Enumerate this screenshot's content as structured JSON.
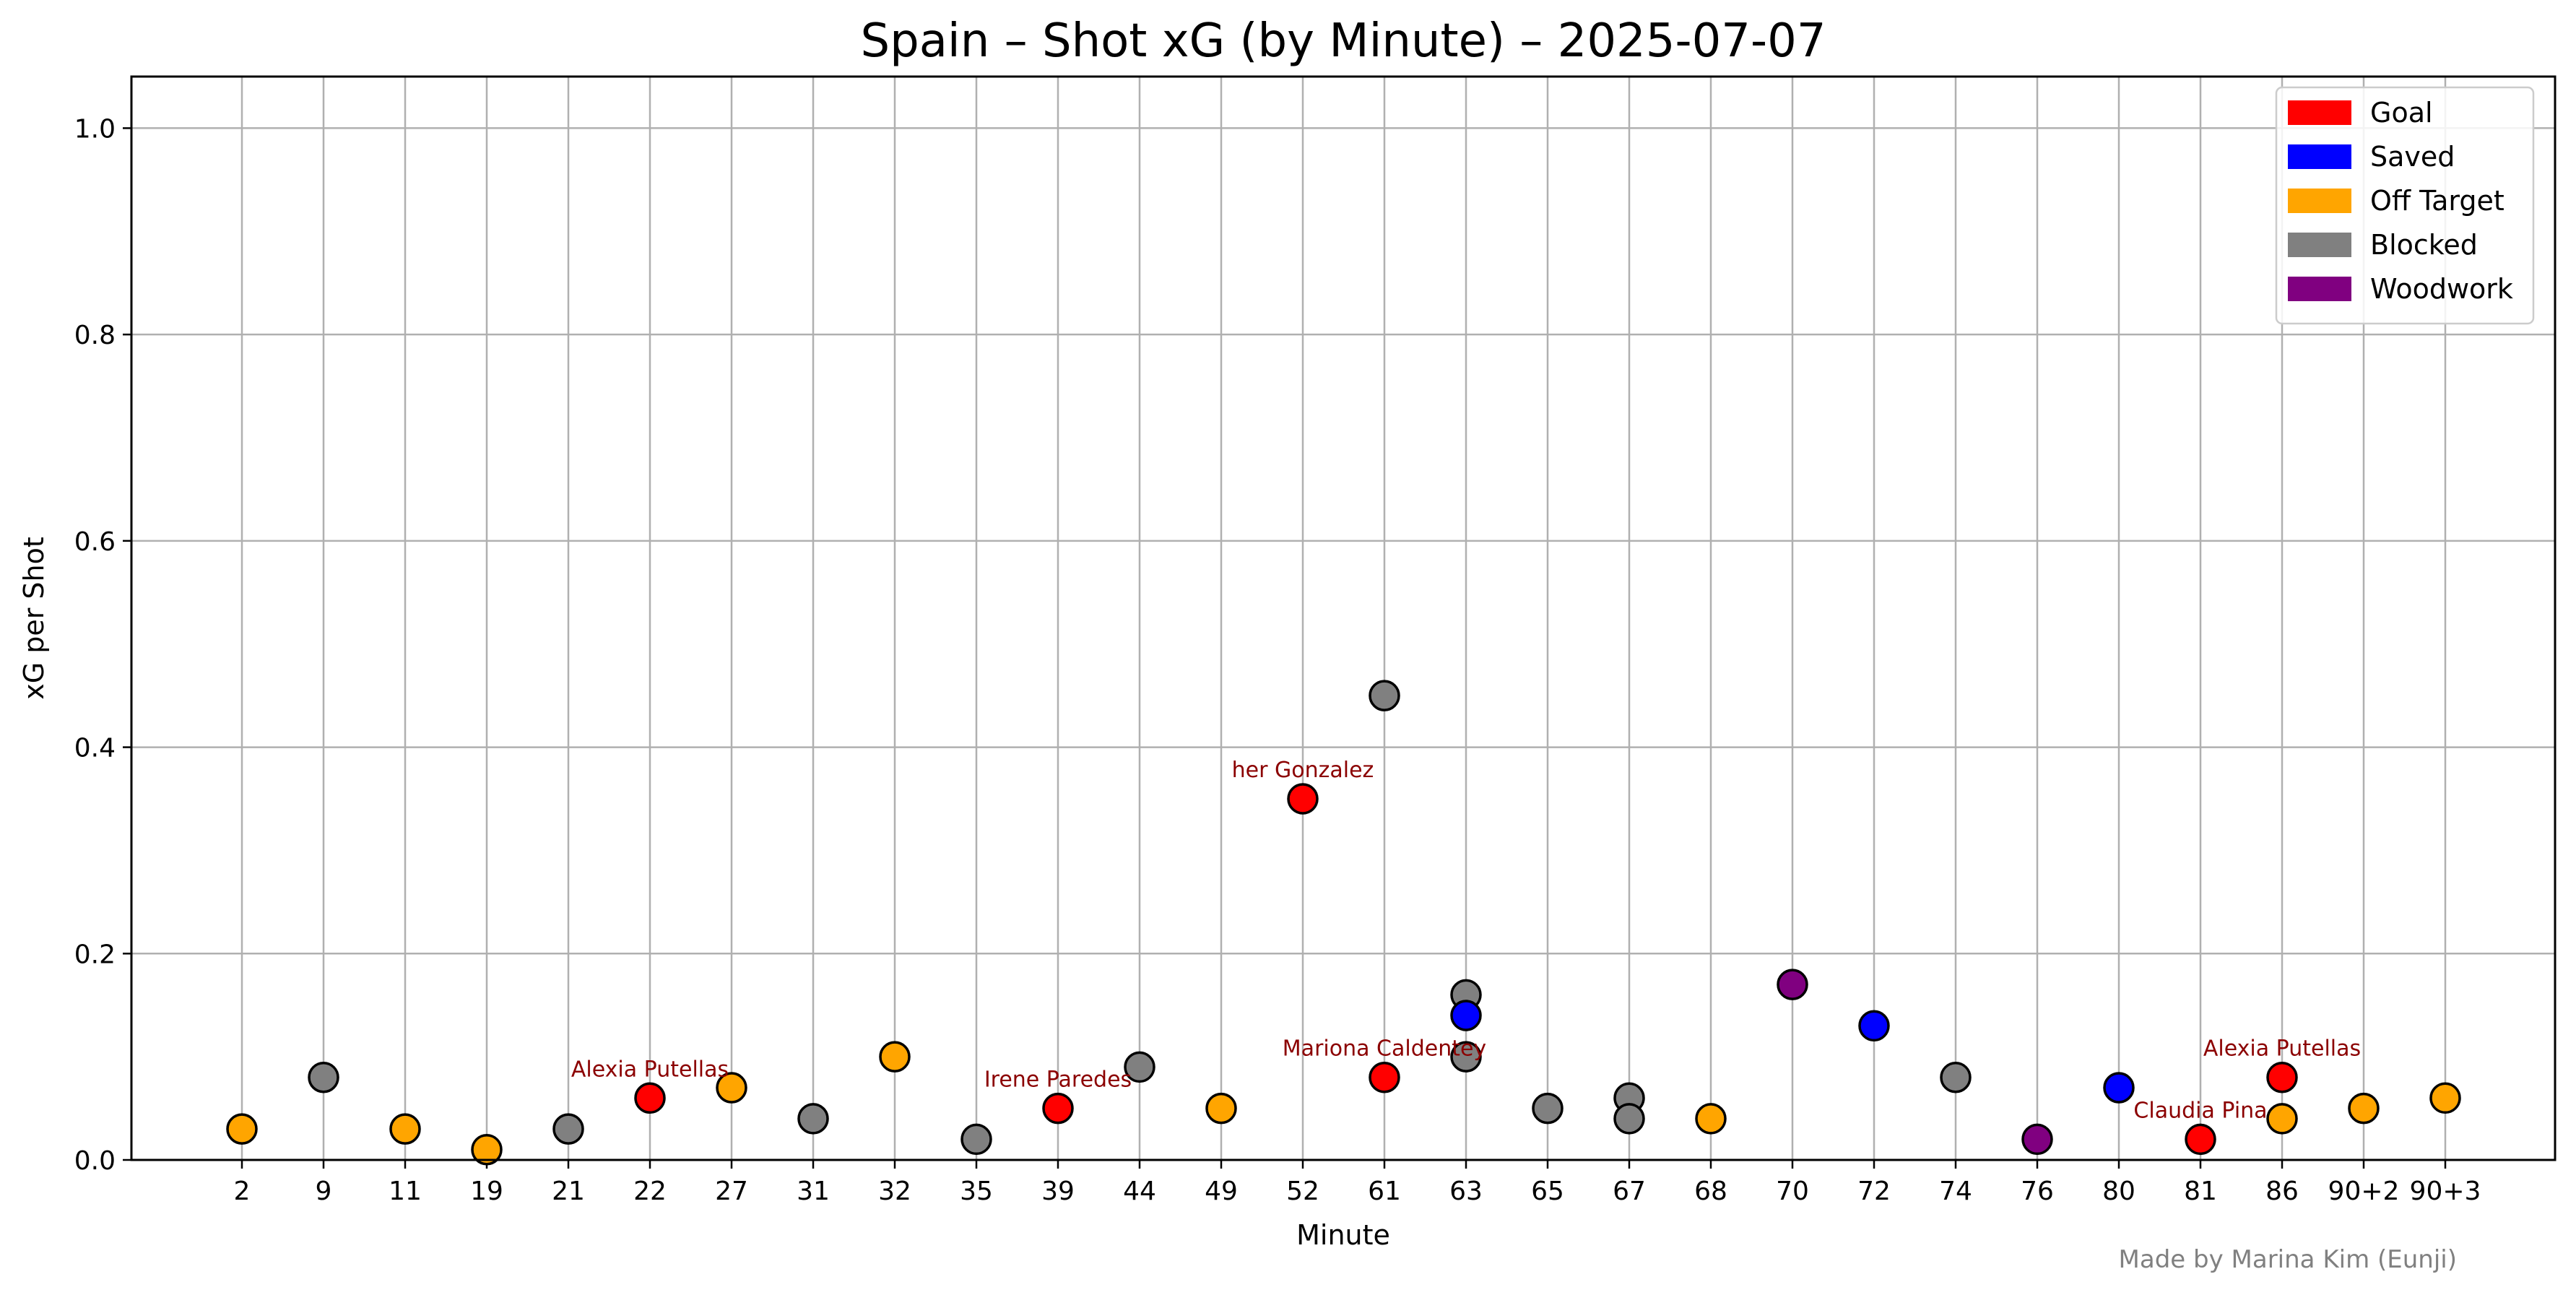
{
  "chart_data": {
    "type": "scatter",
    "title": "Spain – Shot xG (by Minute) – 2025-07-07",
    "xlabel": "Minute",
    "ylabel": "xG per Shot",
    "ylim": [
      0,
      1.05
    ],
    "yticks": [
      "0.0",
      "0.2",
      "0.4",
      "0.6",
      "0.8",
      "1.0"
    ],
    "categories": [
      "2",
      "9",
      "11",
      "19",
      "21",
      "22",
      "27",
      "31",
      "32",
      "35",
      "39",
      "44",
      "49",
      "52",
      "61",
      "63",
      "65",
      "67",
      "68",
      "70",
      "72",
      "74",
      "76",
      "80",
      "81",
      "86",
      "90+2",
      "90+3"
    ],
    "grid": true,
    "legend_position": "top-right",
    "legend": [
      {
        "label": "Goal",
        "color": "#ff0000"
      },
      {
        "label": "Saved",
        "color": "#0000ff"
      },
      {
        "label": "Off Target",
        "color": "#ffa500"
      },
      {
        "label": "Blocked",
        "color": "#808080"
      },
      {
        "label": "Woodwork",
        "color": "#800080"
      }
    ],
    "points": [
      {
        "x": "2",
        "y": 0.03,
        "outcome": "Off Target"
      },
      {
        "x": "9",
        "y": 0.08,
        "outcome": "Blocked"
      },
      {
        "x": "11",
        "y": 0.03,
        "outcome": "Off Target"
      },
      {
        "x": "19",
        "y": 0.01,
        "outcome": "Off Target"
      },
      {
        "x": "21",
        "y": 0.03,
        "outcome": "Blocked"
      },
      {
        "x": "22",
        "y": 0.06,
        "outcome": "Goal",
        "label": "Alexia Putellas"
      },
      {
        "x": "27",
        "y": 0.07,
        "outcome": "Off Target"
      },
      {
        "x": "31",
        "y": 0.04,
        "outcome": "Blocked"
      },
      {
        "x": "32",
        "y": 0.1,
        "outcome": "Off Target"
      },
      {
        "x": "35",
        "y": 0.02,
        "outcome": "Blocked"
      },
      {
        "x": "39",
        "y": 0.05,
        "outcome": "Goal",
        "label": "Irene Paredes"
      },
      {
        "x": "44",
        "y": 0.09,
        "outcome": "Blocked"
      },
      {
        "x": "49",
        "y": 0.05,
        "outcome": "Off Target"
      },
      {
        "x": "52",
        "y": 0.35,
        "outcome": "Goal",
        "label": "her Gonzalez"
      },
      {
        "x": "61",
        "y": 0.45,
        "outcome": "Blocked"
      },
      {
        "x": "61",
        "y": 0.08,
        "outcome": "Goal",
        "label": "Mariona Caldentey"
      },
      {
        "x": "63",
        "y": 0.16,
        "outcome": "Blocked"
      },
      {
        "x": "63",
        "y": 0.14,
        "outcome": "Saved"
      },
      {
        "x": "63",
        "y": 0.1,
        "outcome": "Blocked"
      },
      {
        "x": "65",
        "y": 0.05,
        "outcome": "Blocked"
      },
      {
        "x": "67",
        "y": 0.06,
        "outcome": "Blocked"
      },
      {
        "x": "67",
        "y": 0.04,
        "outcome": "Blocked"
      },
      {
        "x": "68",
        "y": 0.04,
        "outcome": "Off Target"
      },
      {
        "x": "70",
        "y": 0.17,
        "outcome": "Woodwork"
      },
      {
        "x": "72",
        "y": 0.13,
        "outcome": "Saved"
      },
      {
        "x": "74",
        "y": 0.08,
        "outcome": "Blocked"
      },
      {
        "x": "76",
        "y": 0.02,
        "outcome": "Woodwork"
      },
      {
        "x": "80",
        "y": 0.07,
        "outcome": "Saved"
      },
      {
        "x": "81",
        "y": 0.02,
        "outcome": "Goal",
        "label": "Claudia Pina"
      },
      {
        "x": "86",
        "y": 0.08,
        "outcome": "Goal",
        "label": "Alexia Putellas"
      },
      {
        "x": "86",
        "y": 0.04,
        "outcome": "Off Target"
      },
      {
        "x": "90+2",
        "y": 0.05,
        "outcome": "Off Target"
      },
      {
        "x": "90+3",
        "y": 0.06,
        "outcome": "Off Target"
      }
    ]
  },
  "credit": "Made by Marina Kim (Eunji)"
}
